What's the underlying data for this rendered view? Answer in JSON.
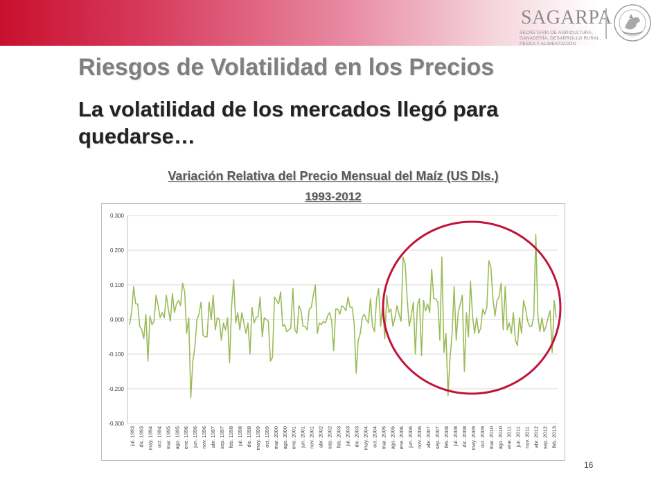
{
  "header": {
    "logo_text": "SAGARPA",
    "logo_lines": [
      "SECRETARÍA DE AGRICULTURA,",
      "GANADERÍA, DESARROLLO RURAL,",
      "PESCA Y ALIMENTACIÓN"
    ],
    "brand_colors": {
      "banner_red": "#c8102e",
      "logo_gray": "#8c8c8c"
    }
  },
  "slide": {
    "title": "Riesgos de Volatilidad en los Precios",
    "subtitle": "La volatilidad de los mercados llegó para quedarse…",
    "chart_title": "Variación Relativa del Precio Mensual del Maíz (US Dls.)",
    "chart_range": "1993-2012",
    "page_number": "16"
  },
  "chart_data": {
    "type": "line",
    "title": "",
    "xlabel": "",
    "ylabel": "",
    "ylim": [
      -0.3,
      0.3
    ],
    "yticks": [
      0.3,
      0.2,
      0.1,
      0.0,
      -0.1,
      -0.2,
      -0.3
    ],
    "ytick_labels": [
      "0.300",
      "0.200",
      "0.100",
      "0.000",
      "-0.100",
      "-0.200",
      "-0.300"
    ],
    "grid": true,
    "legend": "none",
    "line_color": "#9bbb59",
    "annotation": {
      "shape": "ellipse",
      "color": "#c0143c",
      "covers": "2005-2013"
    },
    "xtick_labels": [
      "jul. 1993",
      "dic. 1993",
      "may. 1994",
      "oct. 1994",
      "mar. 1995",
      "ago. 1995",
      "ene. 1996",
      "jun. 1996",
      "nov. 1996",
      "abr. 1997",
      "sep. 1997",
      "feb. 1998",
      "jul. 1998",
      "dic. 1998",
      "may. 1999",
      "oct. 1999",
      "mar. 2000",
      "ago. 2000",
      "ene. 2001",
      "jun. 2001",
      "nov. 2001",
      "abr. 2002",
      "sep. 2002",
      "feb. 2003",
      "jul. 2003",
      "dic. 2003",
      "may. 2004",
      "oct. 2004",
      "mar. 2005",
      "ago. 2005",
      "ene. 2006",
      "jun. 2006",
      "nov. 2006",
      "abr. 2007",
      "sep. 2007",
      "feb. 2008",
      "jul. 2008",
      "dic. 2008",
      "may. 2009",
      "oct. 2009",
      "mar. 2010",
      "ago. 2010",
      "ene. 2011",
      "jun. 2011",
      "nov. 2011",
      "abr. 2012",
      "sep. 2012",
      "feb. 2013"
    ],
    "series": [
      {
        "values": [
          -0.015,
          0.02,
          0.095,
          0.045,
          0.045,
          -0.02,
          -0.03,
          -0.055,
          0.015,
          -0.12,
          0.01,
          -0.015,
          -0.005,
          0.07,
          0.04,
          0.005,
          0.02,
          0.005,
          0.07,
          0.03,
          -0.005,
          0.075,
          0.02,
          0.045,
          0.055,
          0.04,
          0.105,
          0.08,
          -0.04,
          0.005,
          -0.225,
          -0.12,
          -0.08,
          0.0,
          0.015,
          0.05,
          -0.045,
          -0.05,
          -0.05,
          0.05,
          0.0,
          0.07,
          -0.03,
          0.005,
          0.0,
          -0.06,
          -0.01,
          -0.03,
          0.005,
          -0.125,
          0.04,
          0.115,
          -0.01,
          0.02,
          -0.03,
          0.02,
          -0.01,
          -0.04,
          -0.01,
          -0.1,
          0.035,
          -0.01,
          0.005,
          0.01,
          0.065,
          -0.05,
          0.005,
          0.0,
          -0.005,
          -0.12,
          -0.11,
          0.065,
          0.055,
          0.045,
          0.08,
          -0.02,
          -0.015,
          -0.035,
          -0.03,
          -0.025,
          0.09,
          -0.03,
          -0.04,
          0.04,
          0.025,
          -0.02,
          -0.02,
          -0.03,
          0.03,
          0.035,
          0.07,
          0.1,
          -0.04,
          -0.01,
          -0.015,
          -0.005,
          -0.01,
          0.01,
          0.02,
          -0.005,
          -0.09,
          0.03,
          0.03,
          0.015,
          0.04,
          0.035,
          0.025,
          0.065,
          0.035,
          0.035,
          -0.01,
          -0.155,
          -0.06,
          -0.04,
          0.005,
          0.015,
          0.0,
          -0.01,
          0.06,
          -0.02,
          -0.035,
          0.06,
          0.09,
          -0.02,
          0.045,
          -0.055,
          0.07,
          0.02,
          0.03,
          -0.02,
          0.005,
          0.04,
          0.015,
          -0.005,
          0.18,
          0.16,
          0.06,
          -0.02,
          0.01,
          0.05,
          -0.1,
          0.04,
          0.06,
          -0.105,
          0.055,
          0.025,
          0.045,
          0.02,
          0.145,
          0.06,
          0.06,
          0.05,
          -0.06,
          0.18,
          -0.095,
          -0.04,
          -0.22,
          -0.11,
          -0.04,
          0.095,
          -0.06,
          0.02,
          0.045,
          0.07,
          -0.15,
          0.02,
          -0.05,
          0.11,
          0.01,
          -0.04,
          0.005,
          -0.04,
          -0.025,
          0.03,
          0.015,
          0.035,
          0.17,
          0.15,
          0.06,
          0.01,
          0.055,
          0.065,
          0.105,
          -0.03,
          0.095,
          -0.03,
          -0.01,
          -0.04,
          0.02,
          -0.06,
          -0.075,
          0.005,
          -0.04,
          0.055,
          0.03,
          -0.005,
          -0.02,
          -0.02,
          0.01,
          0.245,
          0.01,
          -0.035,
          0.005,
          -0.035,
          -0.02,
          0.005,
          0.025,
          -0.095,
          0.055,
          0.005
        ]
      }
    ]
  }
}
